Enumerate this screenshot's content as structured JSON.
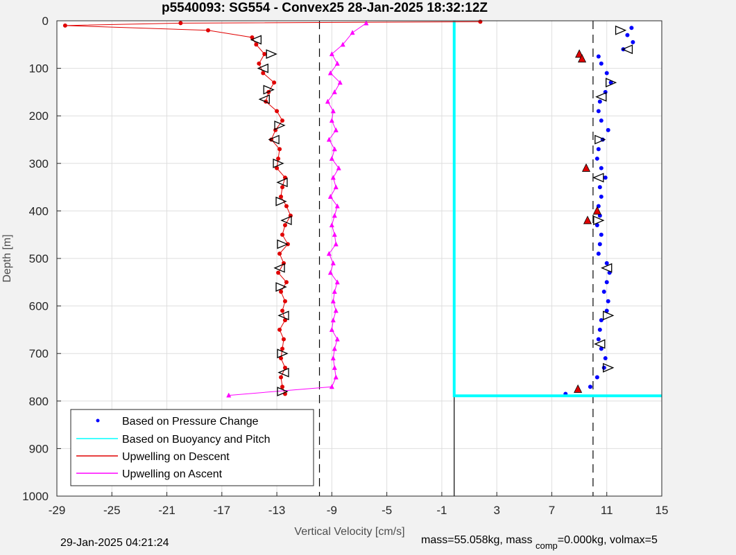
{
  "chart_data": {
    "type": "scatter",
    "title": "p5540093: SG554 - Convex25 28-Jan-2025 18:32:12Z",
    "xlabel": "Vertical Velocity [cm/s]",
    "ylabel": "Depth [m]",
    "xlim": [
      -29,
      15
    ],
    "ylim": [
      0,
      1000
    ],
    "y_reversed": true,
    "grid": true,
    "xticks": [
      -29,
      -25,
      -21,
      -17,
      -13,
      -9,
      -5,
      -1,
      3,
      7,
      11,
      15
    ],
    "yticks": [
      0,
      100,
      200,
      300,
      400,
      500,
      600,
      700,
      800,
      900,
      1000
    ],
    "legend_position": "bottom-left",
    "reference_lines": {
      "dashed_x": [
        -9.9,
        10.0
      ],
      "solid_x": -0.1,
      "solid_x_depth_from": 790
    },
    "series": [
      {
        "name": "Based on Pressure Change",
        "color": "#0000ff",
        "marker": "dot",
        "depth": [
          15,
          30,
          45,
          60,
          75,
          90,
          110,
          130,
          150,
          170,
          190,
          210,
          230,
          250,
          270,
          290,
          310,
          330,
          350,
          370,
          390,
          410,
          430,
          450,
          470,
          490,
          510,
          530,
          550,
          570,
          590,
          610,
          630,
          650,
          670,
          690,
          710,
          730,
          750,
          770,
          785
        ],
        "values": [
          12.8,
          12.5,
          12.9,
          12.2,
          10.4,
          10.6,
          11.0,
          11.3,
          10.9,
          10.5,
          10.4,
          10.6,
          11.1,
          10.7,
          10.4,
          10.3,
          10.6,
          10.9,
          10.5,
          10.6,
          10.4,
          10.5,
          10.3,
          10.6,
          10.5,
          10.4,
          11.0,
          11.2,
          11.0,
          10.8,
          11.1,
          11.0,
          10.6,
          10.5,
          10.4,
          10.6,
          10.9,
          10.8,
          10.3,
          9.8,
          8.0
        ]
      },
      {
        "name": "Based on Buoyancy and Pitch",
        "color": "#00ffff",
        "marker": "line",
        "depth": [
          0,
          100,
          200,
          300,
          400,
          500,
          600,
          700,
          789,
          789
        ],
        "values": [
          -0.1,
          -0.1,
          -0.1,
          -0.1,
          -0.1,
          -0.1,
          -0.1,
          -0.1,
          -0.1,
          15
        ]
      },
      {
        "name": "Upwelling on Descent",
        "color": "#e00000",
        "marker": "dot",
        "depth": [
          2,
          5,
          10,
          20,
          35,
          50,
          70,
          90,
          110,
          130,
          150,
          170,
          190,
          210,
          230,
          250,
          270,
          290,
          310,
          330,
          350,
          370,
          390,
          410,
          430,
          450,
          470,
          490,
          510,
          530,
          550,
          570,
          590,
          610,
          630,
          650,
          670,
          690,
          710,
          730,
          750,
          770,
          785
        ],
        "values": [
          1.8,
          -20.0,
          -28.4,
          -18.0,
          -14.8,
          -14.5,
          -13.9,
          -14.3,
          -14.0,
          -13.2,
          -13.6,
          -13.8,
          -13.0,
          -12.6,
          -13.1,
          -13.4,
          -12.8,
          -12.9,
          -13.0,
          -12.4,
          -12.6,
          -12.7,
          -12.3,
          -12.0,
          -12.4,
          -12.6,
          -12.2,
          -12.8,
          -12.5,
          -12.9,
          -12.3,
          -12.7,
          -12.4,
          -12.6,
          -12.4,
          -12.8,
          -12.5,
          -12.6,
          -12.7,
          -12.4,
          -12.7,
          -12.6,
          -12.4
        ]
      },
      {
        "name": "Upwelling on Ascent",
        "color": "#ff00ff",
        "marker": "triangle",
        "depth": [
          5,
          25,
          50,
          70,
          90,
          110,
          130,
          150,
          170,
          190,
          210,
          230,
          250,
          270,
          290,
          310,
          330,
          350,
          370,
          390,
          410,
          430,
          450,
          470,
          490,
          510,
          530,
          550,
          570,
          590,
          610,
          630,
          650,
          670,
          690,
          710,
          730,
          750,
          770,
          788
        ],
        "values": [
          -6.5,
          -7.5,
          -8.2,
          -9.0,
          -8.6,
          -9.1,
          -8.4,
          -8.8,
          -9.3,
          -8.9,
          -9.0,
          -8.7,
          -9.2,
          -8.8,
          -9.0,
          -8.5,
          -8.9,
          -8.7,
          -9.1,
          -8.6,
          -8.8,
          -9.0,
          -8.8,
          -8.7,
          -9.2,
          -8.9,
          -9.1,
          -8.6,
          -8.8,
          -8.9,
          -8.7,
          -8.9,
          -9.0,
          -8.6,
          -8.8,
          -8.9,
          -8.8,
          -8.7,
          -9.0,
          -16.5
        ]
      }
    ],
    "annotations": {
      "descent_markers": {
        "depth": [
          40,
          70,
          100,
          145,
          165,
          220,
          250,
          300,
          340,
          380,
          420,
          470,
          520,
          560,
          620,
          700,
          740,
          780
        ],
        "values": [
          -14.5,
          -13.4,
          -14.0,
          -13.6,
          -13.9,
          -12.8,
          -13.2,
          -12.9,
          -12.6,
          -12.7,
          -12.3,
          -12.6,
          -12.8,
          -12.7,
          -12.5,
          -12.6,
          -12.5,
          -12.6
        ]
      },
      "pressure_markers": {
        "depth": [
          20,
          60,
          130,
          160,
          250,
          330,
          420,
          520,
          620,
          680,
          730
        ],
        "values": [
          12.0,
          12.5,
          11.3,
          10.6,
          10.5,
          10.4,
          10.4,
          11.0,
          11.1,
          10.5,
          11.1
        ]
      },
      "red_triangles": {
        "depth": [
          70,
          80,
          310,
          400,
          420,
          775
        ],
        "values": [
          9.0,
          9.2,
          9.5,
          10.3,
          9.6,
          8.9
        ]
      }
    },
    "legend": [
      "Based on Pressure Change",
      "Based on Buoyancy and Pitch",
      "Upwelling on Descent",
      "Upwelling on Ascent"
    ]
  },
  "footer": {
    "timestamp": "29-Jan-2025 04:21:24",
    "mass_text": "mass=55.058kg, mass",
    "comp_text": "comp",
    "tail_text": "=0.000kg, volmax=5"
  }
}
